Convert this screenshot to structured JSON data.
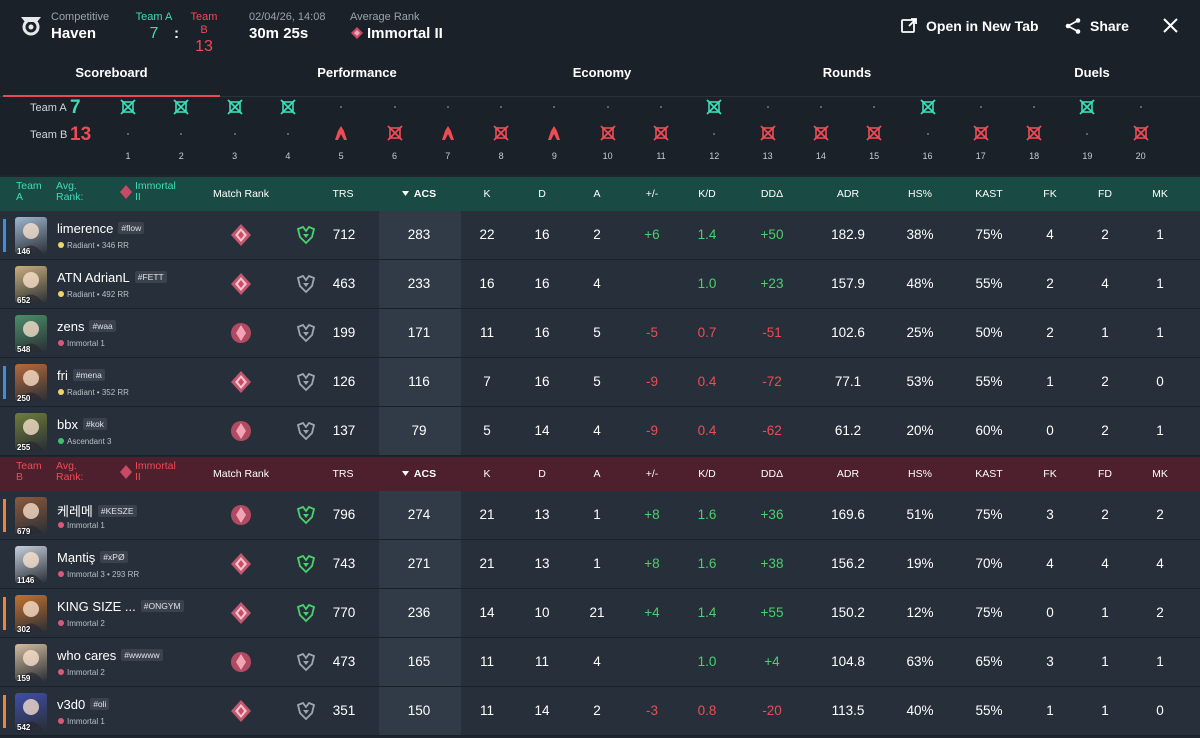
{
  "header": {
    "mode": "Competitive",
    "map": "Haven",
    "teamA_label": "Team A",
    "teamB_label": "Team B",
    "teamA_score": "7",
    "separator": ":",
    "teamB_score": "13",
    "datetime": "02/04/26, 14:08",
    "duration": "30m 25s",
    "avg_rank_label": "Average Rank",
    "avg_rank": "Immortal II",
    "open_new_tab": "Open in New Tab",
    "share": "Share"
  },
  "tabs": [
    "Scoreboard",
    "Performance",
    "Economy",
    "Rounds",
    "Duels"
  ],
  "timeline": {
    "teamA_label": "Team A",
    "teamB_label": "Team B",
    "teamA_score": "7",
    "teamB_score": "13",
    "rounds": [
      {
        "n": "1",
        "winner": "A",
        "type": "elim"
      },
      {
        "n": "2",
        "winner": "A",
        "type": "elim"
      },
      {
        "n": "3",
        "winner": "A",
        "type": "elim"
      },
      {
        "n": "4",
        "winner": "A",
        "type": "elim"
      },
      {
        "n": "5",
        "winner": "B",
        "type": "spike"
      },
      {
        "n": "6",
        "winner": "B",
        "type": "elim"
      },
      {
        "n": "7",
        "winner": "B",
        "type": "spike"
      },
      {
        "n": "8",
        "winner": "B",
        "type": "elim"
      },
      {
        "n": "9",
        "winner": "B",
        "type": "spike"
      },
      {
        "n": "10",
        "winner": "B",
        "type": "elim"
      },
      {
        "n": "11",
        "winner": "B",
        "type": "elim"
      },
      {
        "n": "12",
        "winner": "A",
        "type": "elim"
      },
      {
        "n": "13",
        "winner": "B",
        "type": "elim"
      },
      {
        "n": "14",
        "winner": "B",
        "type": "elim"
      },
      {
        "n": "15",
        "winner": "B",
        "type": "elim"
      },
      {
        "n": "16",
        "winner": "A",
        "type": "elim"
      },
      {
        "n": "17",
        "winner": "B",
        "type": "elim"
      },
      {
        "n": "18",
        "winner": "B",
        "type": "elim"
      },
      {
        "n": "19",
        "winner": "A",
        "type": "elim"
      },
      {
        "n": "20",
        "winner": "B",
        "type": "elim"
      }
    ]
  },
  "columns": {
    "match_rank": "Match Rank",
    "trs": "TRS",
    "acs": "ACS",
    "k": "K",
    "d": "D",
    "a": "A",
    "pm": "+/-",
    "kd": "K/D",
    "dd": "DDΔ",
    "adr": "ADR",
    "hs": "HS%",
    "kast": "KAST",
    "fk": "FK",
    "fd": "FD",
    "mk": "MK"
  },
  "teamA": {
    "team_line1": "Team",
    "team_line2": "A",
    "avg_line1": "Avg.",
    "avg_line2": "Rank:",
    "rank_line1": "Immortal",
    "rank_line2": "II",
    "color": "#3ddcb8",
    "players": [
      {
        "name": "limerence",
        "tag": "#flow",
        "rank": "Radiant • 346 RR",
        "rank_color": "#f3d46b",
        "level": "146",
        "bar": "#3a8fe0",
        "trs": "712",
        "acs": "283",
        "k": "22",
        "d": "16",
        "a": "2",
        "pm": "+6",
        "kd": "1.4",
        "dd": "+50",
        "adr": "182.9",
        "hs": "38%",
        "kast": "75%",
        "fk": "4",
        "fd": "2",
        "mk": "1",
        "mr": "radiant",
        "trs_tier": "green",
        "avatar": "#9fb7cf"
      },
      {
        "name": "ATN AdrianL",
        "tag": "#FETT",
        "rank": "Radiant • 492 RR",
        "rank_color": "#f3d46b",
        "level": "652",
        "bar": "",
        "trs": "463",
        "acs": "233",
        "k": "16",
        "d": "16",
        "a": "4",
        "pm": "",
        "kd": "1.0",
        "dd": "+23",
        "adr": "157.9",
        "hs": "48%",
        "kast": "55%",
        "fk": "2",
        "fd": "4",
        "mk": "1",
        "mr": "radiant",
        "trs_tier": "gray",
        "avatar": "#c9b07a"
      },
      {
        "name": "zens",
        "tag": "#waa",
        "rank": "Immortal 1",
        "rank_color": "#d85a78",
        "level": "548",
        "bar": "",
        "trs": "199",
        "acs": "171",
        "k": "11",
        "d": "16",
        "a": "5",
        "pm": "-5",
        "kd": "0.7",
        "dd": "-51",
        "adr": "102.6",
        "hs": "25%",
        "kast": "50%",
        "fk": "2",
        "fd": "1",
        "mk": "1",
        "mr": "immortal",
        "trs_tier": "gray",
        "avatar": "#4c8f6a"
      },
      {
        "name": "fri",
        "tag": "#mena",
        "rank": "Radiant • 352 RR",
        "rank_color": "#f3d46b",
        "level": "250",
        "bar": "#3a8fe0",
        "trs": "126",
        "acs": "116",
        "k": "7",
        "d": "16",
        "a": "5",
        "pm": "-9",
        "kd": "0.4",
        "dd": "-72",
        "adr": "77.1",
        "hs": "53%",
        "kast": "55%",
        "fk": "1",
        "fd": "2",
        "mk": "0",
        "mr": "radiant",
        "trs_tier": "gray",
        "avatar": "#b76a3b"
      },
      {
        "name": "bbx",
        "tag": "#kok",
        "rank": "Ascendant 3",
        "rank_color": "#3fbf6f",
        "level": "255",
        "bar": "",
        "trs": "137",
        "acs": "79",
        "k": "5",
        "d": "14",
        "a": "4",
        "pm": "-9",
        "kd": "0.4",
        "dd": "-62",
        "adr": "61.2",
        "hs": "20%",
        "kast": "60%",
        "fk": "0",
        "fd": "2",
        "mk": "1",
        "mr": "immortal",
        "trs_tier": "gray",
        "avatar": "#6f7d3a"
      }
    ]
  },
  "teamB": {
    "team_line1": "Team",
    "team_line2": "B",
    "avg_line1": "Avg.",
    "avg_line2": "Rank:",
    "rank_line1": "Immortal",
    "rank_line2": "II",
    "color": "#ef4b55",
    "players": [
      {
        "name": "케레메",
        "tag": "#KESZE",
        "rank": "Immortal 1",
        "rank_color": "#d85a78",
        "level": "679",
        "bar": "#f0823a",
        "trs": "796",
        "acs": "274",
        "k": "21",
        "d": "13",
        "a": "1",
        "pm": "+8",
        "kd": "1.6",
        "dd": "+36",
        "adr": "169.6",
        "hs": "51%",
        "kast": "75%",
        "fk": "3",
        "fd": "2",
        "mk": "2",
        "mr": "immortal",
        "trs_tier": "green",
        "avatar": "#8c5a3c"
      },
      {
        "name": "Mạntiş",
        "tag": "#xPØ",
        "rank": "Immortal 3 • 293 RR",
        "rank_color": "#d85a78",
        "level": "1146",
        "bar": "",
        "trs": "743",
        "acs": "271",
        "k": "21",
        "d": "13",
        "a": "1",
        "pm": "+8",
        "kd": "1.6",
        "dd": "+38",
        "adr": "156.2",
        "hs": "19%",
        "kast": "70%",
        "fk": "4",
        "fd": "4",
        "mk": "4",
        "mr": "radiant",
        "trs_tier": "green",
        "avatar": "#c7d0dc"
      },
      {
        "name": "KING SIZE ...",
        "tag": "#ONGYM",
        "rank": "Immortal 2",
        "rank_color": "#d85a78",
        "level": "302",
        "bar": "#f0823a",
        "trs": "770",
        "acs": "236",
        "k": "14",
        "d": "10",
        "a": "21",
        "pm": "+4",
        "kd": "1.4",
        "dd": "+55",
        "adr": "150.2",
        "hs": "12%",
        "kast": "75%",
        "fk": "0",
        "fd": "1",
        "mk": "2",
        "mr": "radiant",
        "trs_tier": "green",
        "avatar": "#c5712f"
      },
      {
        "name": "who cares",
        "tag": "#wwwww",
        "rank": "Immortal 2",
        "rank_color": "#d85a78",
        "level": "159",
        "bar": "",
        "trs": "473",
        "acs": "165",
        "k": "11",
        "d": "11",
        "a": "4",
        "pm": "",
        "kd": "1.0",
        "dd": "+4",
        "adr": "104.8",
        "hs": "63%",
        "kast": "65%",
        "fk": "3",
        "fd": "1",
        "mk": "1",
        "mr": "immortal",
        "trs_tier": "gray",
        "avatar": "#d3bca0"
      },
      {
        "name": "v3d0",
        "tag": "#oli",
        "rank": "Immortal 1",
        "rank_color": "#d85a78",
        "level": "542",
        "bar": "#f0823a",
        "trs": "351",
        "acs": "150",
        "k": "11",
        "d": "14",
        "a": "2",
        "pm": "-3",
        "kd": "0.8",
        "dd": "-20",
        "adr": "113.5",
        "hs": "40%",
        "kast": "55%",
        "fk": "1",
        "fd": "1",
        "mk": "0",
        "mr": "radiant",
        "trs_tier": "gray",
        "avatar": "#3f4fa8"
      }
    ]
  }
}
